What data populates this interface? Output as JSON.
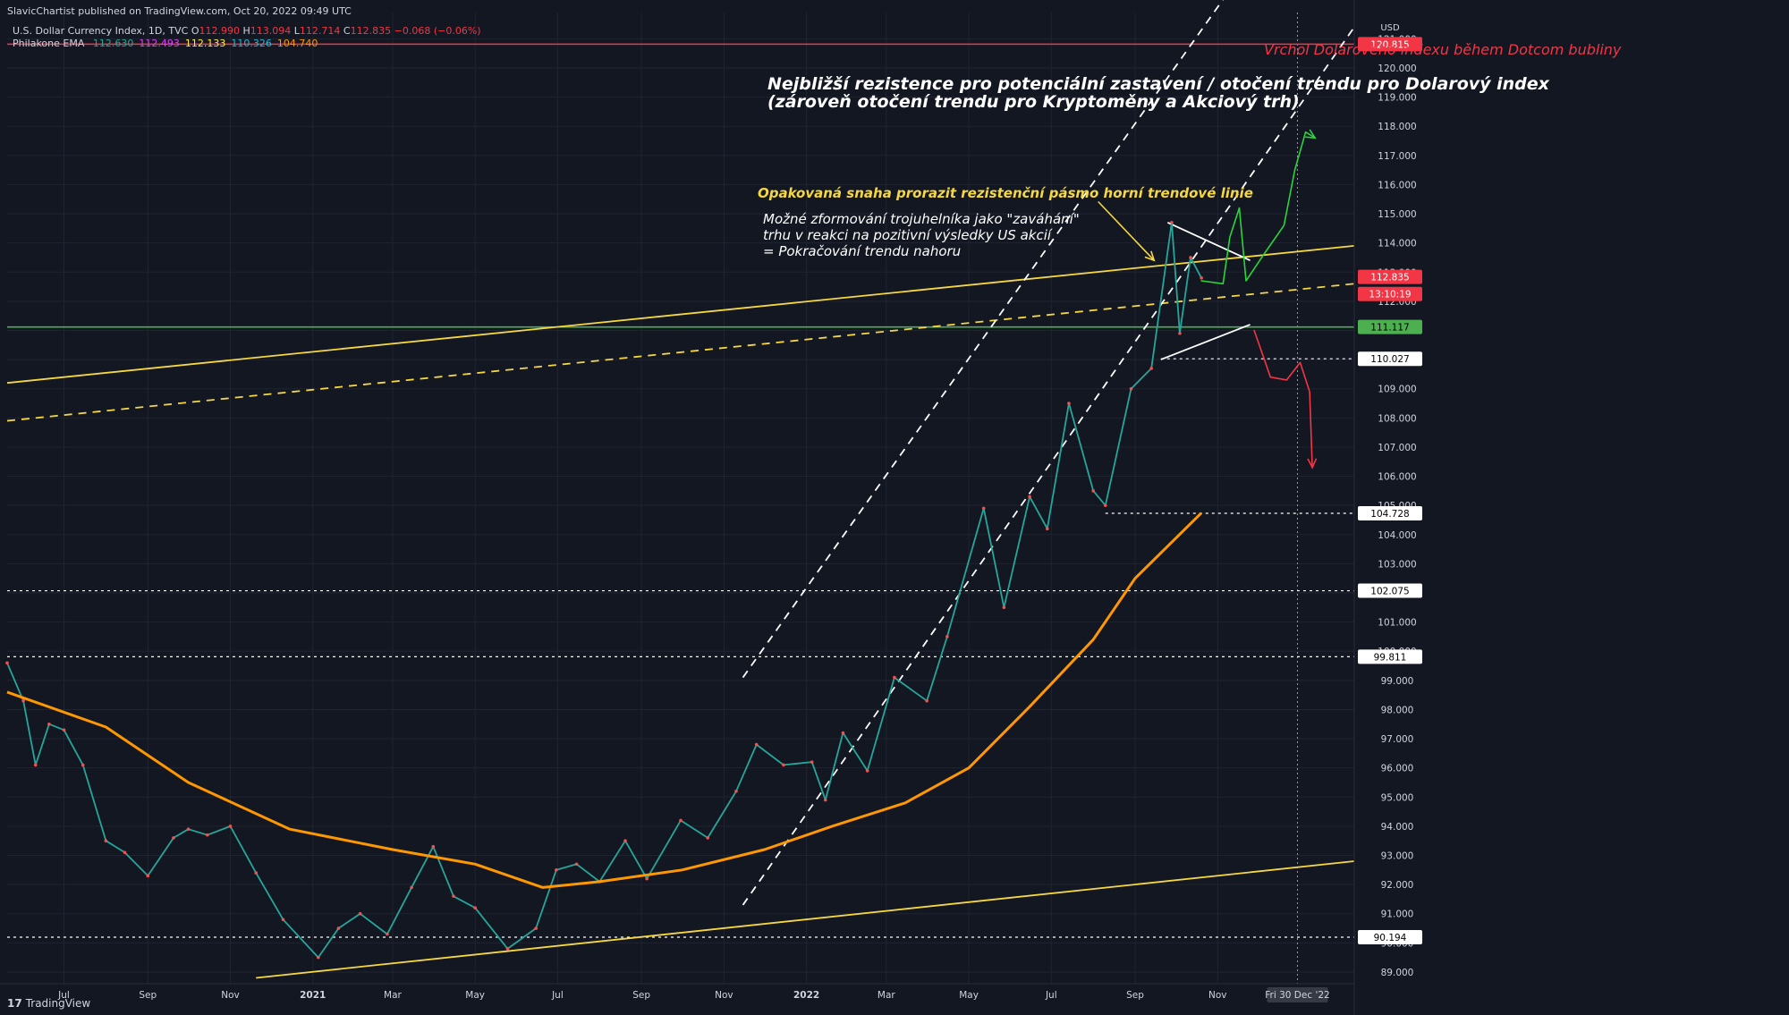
{
  "header": {
    "published": "SlavicChartist published on TradingView.com, Oct 20, 2022 09:49 UTC",
    "symbol": "U.S. Dollar Currency Index, 1D, TVC",
    "ohlc": {
      "o_label": "O",
      "o": "112.990",
      "h_label": "H",
      "h": "113.094",
      "l_label": "L",
      "l": "112.714",
      "c_label": "C",
      "c": "112.835",
      "change": "−0.068 (−0.06%)"
    },
    "indicator": {
      "name": "Philakone EMA",
      "values": [
        {
          "v": "112.630",
          "color": "#26a69a"
        },
        {
          "v": "112.493",
          "color": "#e040fb"
        },
        {
          "v": "112.133",
          "color": "#ffeb3b"
        },
        {
          "v": "110.326",
          "color": "#29b6d6"
        },
        {
          "v": "104.740",
          "color": "#ff9800"
        }
      ]
    }
  },
  "footer": {
    "logo": "17",
    "brand": "TradingView"
  },
  "annotations": {
    "dotcom": "Vrchol Dolarového indexu během Dotcom bubliny",
    "main_title_line1": "Nejbližší rezistence pro potenciální zastavení / otočení trendu pro Dolarový index",
    "main_title_line2": "(zároveň otočení trendu pro Kryptoměny a Akciový trh)",
    "yellow_note": "Opakovaná snaha prorazit rezistenční pásmo horní trendové linie",
    "white_note_1": "Možné zformování trojuhelníka jako \"zaváhání\"",
    "white_note_2": "trhu v reakci na pozitivní výsledky US akcií",
    "white_note_3": "= Pokračování trendu nahoru"
  },
  "chart_data": {
    "type": "line",
    "title": "U.S. Dollar Currency Index, 1D, TVC",
    "currency_label": "USD",
    "y_ticks": [
      89,
      90,
      91,
      92,
      93,
      94,
      95,
      96,
      97,
      98,
      99,
      100,
      101,
      102,
      103,
      104,
      105,
      106,
      107,
      108,
      109,
      110,
      111,
      112,
      113,
      114,
      115,
      116,
      117,
      118,
      119,
      120,
      121
    ],
    "ylim": [
      88.6,
      121.9
    ],
    "x_ticks": [
      "Jul",
      "Sep",
      "Nov",
      "2021",
      "Mar",
      "May",
      "Jul",
      "Sep",
      "Nov",
      "2022",
      "Mar",
      "May",
      "Jul",
      "Sep",
      "Nov"
    ],
    "x_tick_dates": [
      "2020-07-01",
      "2020-09-01",
      "2020-11-01",
      "2021-01-01",
      "2021-03-01",
      "2021-05-01",
      "2021-07-01",
      "2021-09-01",
      "2021-11-01",
      "2022-01-01",
      "2022-03-01",
      "2022-05-01",
      "2022-07-01",
      "2022-09-01",
      "2022-11-01"
    ],
    "xlim": [
      "2020-05-20",
      "2023-02-10"
    ],
    "cursor_date_label": "Fri 30 Dec '22",
    "cursor_date": "2022-12-30",
    "price_labels": [
      {
        "value": 120.815,
        "text": "120.815",
        "bg": "#f23645",
        "fg": "#ffffff"
      },
      {
        "value": 112.835,
        "text": "112.835",
        "bg": "#f23645",
        "fg": "#ffffff"
      },
      {
        "value": 112.25,
        "text": "13:10:19",
        "bg": "#f23645",
        "fg": "#ffffff"
      },
      {
        "value": 111.117,
        "text": "111.117",
        "bg": "#4caf50",
        "fg": "#000000"
      },
      {
        "value": 110.027,
        "text": "110.027",
        "bg": "#ffffff",
        "fg": "#000000"
      },
      {
        "value": 104.728,
        "text": "104.728",
        "bg": "#ffffff",
        "fg": "#000000"
      },
      {
        "value": 102.075,
        "text": "102.075",
        "bg": "#ffffff",
        "fg": "#000000"
      },
      {
        "value": 99.811,
        "text": "99.811",
        "bg": "#ffffff",
        "fg": "#000000"
      },
      {
        "value": 90.194,
        "text": "90.194",
        "bg": "#ffffff",
        "fg": "#000000"
      }
    ],
    "horizontal_lines": [
      {
        "value": 120.815,
        "color": "#f23645",
        "style": "solid"
      },
      {
        "value": 111.117,
        "color": "#4caf50",
        "style": "solid"
      },
      {
        "value": 110.027,
        "color": "#ffffff",
        "style": "dotted",
        "from": "2022-09-20"
      },
      {
        "value": 104.728,
        "color": "#ffffff",
        "style": "dotted",
        "from": "2022-08-10"
      },
      {
        "value": 102.075,
        "color": "#ffffff",
        "style": "dotted"
      },
      {
        "value": 99.811,
        "color": "#ffffff",
        "style": "dotted"
      },
      {
        "value": 90.194,
        "color": "#ffffff",
        "style": "dotted"
      }
    ],
    "trend_lines": [
      {
        "from": [
          "2020-05-20",
          109.2
        ],
        "to": [
          "2023-02-10",
          113.9
        ],
        "color": "#f5d742",
        "dash": false
      },
      {
        "from": [
          "2020-05-20",
          107.9
        ],
        "to": [
          "2023-02-10",
          112.6
        ],
        "color": "#f5d742",
        "dash": true
      },
      {
        "from": [
          "2020-11-20",
          88.8
        ],
        "to": [
          "2023-02-10",
          92.8
        ],
        "color": "#f5d742",
        "dash": false
      },
      {
        "from": [
          "2021-11-15",
          91.3
        ],
        "to": [
          "2023-02-10",
          121.4
        ],
        "color": "#ffffff",
        "dash": true
      },
      {
        "from": [
          "2021-11-15",
          99.1
        ],
        "to": [
          "2023-02-10",
          128.7
        ],
        "color": "#ffffff",
        "dash": true
      },
      {
        "from": [
          "2022-09-25",
          114.7
        ],
        "to": [
          "2022-11-25",
          113.4
        ],
        "color": "#ffffff",
        "dash": false
      },
      {
        "from": [
          "2022-09-20",
          110.0
        ],
        "to": [
          "2022-11-25",
          111.2
        ],
        "color": "#ffffff",
        "dash": false
      }
    ],
    "series": [
      {
        "name": "DXY",
        "color": "#26a69a",
        "values": [
          [
            "2020-05-20",
            99.6
          ],
          [
            "2020-06-01",
            98.3
          ],
          [
            "2020-06-10",
            96.1
          ],
          [
            "2020-06-20",
            97.5
          ],
          [
            "2020-07-01",
            97.3
          ],
          [
            "2020-07-15",
            96.1
          ],
          [
            "2020-08-01",
            93.5
          ],
          [
            "2020-08-15",
            93.1
          ],
          [
            "2020-09-01",
            92.3
          ],
          [
            "2020-09-20",
            93.6
          ],
          [
            "2020-10-01",
            93.9
          ],
          [
            "2020-10-15",
            93.7
          ],
          [
            "2020-11-01",
            94.0
          ],
          [
            "2020-11-20",
            92.4
          ],
          [
            "2020-12-10",
            90.8
          ],
          [
            "2021-01-05",
            89.5
          ],
          [
            "2021-01-20",
            90.5
          ],
          [
            "2021-02-05",
            91.0
          ],
          [
            "2021-02-25",
            90.3
          ],
          [
            "2021-03-15",
            91.9
          ],
          [
            "2021-03-31",
            93.3
          ],
          [
            "2021-04-15",
            91.6
          ],
          [
            "2021-05-01",
            91.2
          ],
          [
            "2021-05-25",
            89.8
          ],
          [
            "2021-06-15",
            90.5
          ],
          [
            "2021-06-30",
            92.5
          ],
          [
            "2021-07-15",
            92.7
          ],
          [
            "2021-08-01",
            92.1
          ],
          [
            "2021-08-20",
            93.5
          ],
          [
            "2021-09-05",
            92.2
          ],
          [
            "2021-09-30",
            94.2
          ],
          [
            "2021-10-20",
            93.6
          ],
          [
            "2021-11-10",
            95.2
          ],
          [
            "2021-11-25",
            96.8
          ],
          [
            "2021-12-15",
            96.1
          ],
          [
            "2022-01-05",
            96.2
          ],
          [
            "2022-01-15",
            94.9
          ],
          [
            "2022-01-28",
            97.2
          ],
          [
            "2022-02-15",
            95.9
          ],
          [
            "2022-03-07",
            99.1
          ],
          [
            "2022-03-31",
            98.3
          ],
          [
            "2022-04-15",
            100.5
          ],
          [
            "2022-05-12",
            104.9
          ],
          [
            "2022-05-27",
            101.5
          ],
          [
            "2022-06-15",
            105.3
          ],
          [
            "2022-06-28",
            104.2
          ],
          [
            "2022-07-14",
            108.5
          ],
          [
            "2022-08-01",
            105.5
          ],
          [
            "2022-08-10",
            105.0
          ],
          [
            "2022-08-29",
            109.0
          ],
          [
            "2022-09-13",
            109.7
          ],
          [
            "2022-09-28",
            114.7
          ],
          [
            "2022-10-04",
            110.9
          ],
          [
            "2022-10-12",
            113.5
          ],
          [
            "2022-10-20",
            112.8
          ]
        ]
      },
      {
        "name": "EMA 200",
        "color": "#ff9800",
        "values": [
          [
            "2020-05-20",
            98.6
          ],
          [
            "2020-08-01",
            97.4
          ],
          [
            "2020-10-01",
            95.5
          ],
          [
            "2020-12-15",
            93.9
          ],
          [
            "2021-03-01",
            93.2
          ],
          [
            "2021-05-01",
            92.7
          ],
          [
            "2021-06-20",
            91.9
          ],
          [
            "2021-08-01",
            92.1
          ],
          [
            "2021-10-01",
            92.5
          ],
          [
            "2021-12-01",
            93.2
          ],
          [
            "2022-01-20",
            94.0
          ],
          [
            "2022-03-15",
            94.8
          ],
          [
            "2022-05-01",
            96.0
          ],
          [
            "2022-06-15",
            98.1
          ],
          [
            "2022-08-01",
            100.4
          ],
          [
            "2022-09-01",
            102.5
          ],
          [
            "2022-10-20",
            104.74
          ]
        ]
      }
    ],
    "drawings": [
      {
        "kind": "arrow",
        "color": "#f5d742",
        "points": [
          [
            "2022-08-05",
            115.4
          ],
          [
            "2022-09-15",
            113.4
          ]
        ]
      },
      {
        "kind": "path-arrow",
        "color": "#2bd43b",
        "points": [
          [
            "2022-10-20",
            112.7
          ],
          [
            "2022-11-05",
            112.6
          ],
          [
            "2022-11-10",
            114.2
          ],
          [
            "2022-11-17",
            115.2
          ],
          [
            "2022-11-22",
            112.7
          ],
          [
            "2022-12-05",
            113.6
          ],
          [
            "2022-12-20",
            114.6
          ],
          [
            "2022-12-28",
            116.5
          ],
          [
            "2023-01-05",
            117.8
          ],
          [
            "2023-01-12",
            117.6
          ]
        ]
      },
      {
        "kind": "path-arrow",
        "color": "#f23645",
        "points": [
          [
            "2022-11-28",
            111.0
          ],
          [
            "2022-12-10",
            109.4
          ],
          [
            "2022-12-22",
            109.3
          ],
          [
            "2023-01-01",
            109.9
          ],
          [
            "2023-01-08",
            108.9
          ],
          [
            "2023-01-10",
            106.3
          ]
        ]
      }
    ]
  }
}
